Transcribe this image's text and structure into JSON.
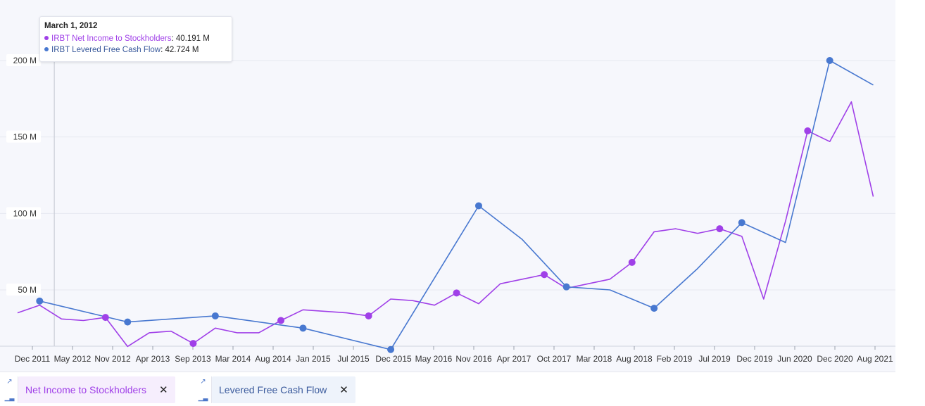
{
  "chart_data": {
    "type": "line",
    "y_ticks": [
      {
        "label": "50 M",
        "value": 50
      },
      {
        "label": "100 M",
        "value": 100
      },
      {
        "label": "150 M",
        "value": 150
      },
      {
        "label": "200 M",
        "value": 200
      }
    ],
    "x_ticks": [
      "Dec 2011",
      "May 2012",
      "Nov 2012",
      "Apr 2013",
      "Sep 2013",
      "Mar 2014",
      "Aug 2014",
      "Jan 2015",
      "Jul 2015",
      "Dec 2015",
      "May 2016",
      "Nov 2016",
      "Apr 2017",
      "Oct 2017",
      "Mar 2018",
      "Aug 2018",
      "Feb 2019",
      "Jul 2019",
      "Dec 2019",
      "Jun 2020",
      "Dec 2020",
      "Aug 2021"
    ],
    "x_range": [
      "Sep 2011",
      "Sep 2021"
    ],
    "ylim": [
      10,
      215
    ],
    "grid": true,
    "series": [
      {
        "name": "IRBT Net Income to Stockholders",
        "color": "#a040e8",
        "points": [
          {
            "x": "2011-09-30",
            "y": 35
          },
          {
            "x": "2011-12-31",
            "y": 40
          },
          {
            "x": "2012-03-31",
            "y": 31
          },
          {
            "x": "2012-06-30",
            "y": 30
          },
          {
            "x": "2012-09-30",
            "y": 32,
            "marker": true
          },
          {
            "x": "2012-12-31",
            "y": 13
          },
          {
            "x": "2013-03-31",
            "y": 22
          },
          {
            "x": "2013-06-30",
            "y": 23
          },
          {
            "x": "2013-09-30",
            "y": 15,
            "marker": true
          },
          {
            "x": "2013-12-31",
            "y": 25
          },
          {
            "x": "2014-03-31",
            "y": 22
          },
          {
            "x": "2014-06-30",
            "y": 22
          },
          {
            "x": "2014-09-30",
            "y": 30,
            "marker": true
          },
          {
            "x": "2014-12-31",
            "y": 37
          },
          {
            "x": "2015-03-31",
            "y": 36
          },
          {
            "x": "2015-06-30",
            "y": 35
          },
          {
            "x": "2015-09-30",
            "y": 33,
            "marker": true
          },
          {
            "x": "2015-12-31",
            "y": 44
          },
          {
            "x": "2016-03-31",
            "y": 43
          },
          {
            "x": "2016-06-30",
            "y": 40
          },
          {
            "x": "2016-09-30",
            "y": 48,
            "marker": true
          },
          {
            "x": "2016-12-31",
            "y": 41
          },
          {
            "x": "2017-03-31",
            "y": 54
          },
          {
            "x": "2017-06-30",
            "y": 57
          },
          {
            "x": "2017-09-30",
            "y": 60,
            "marker": true
          },
          {
            "x": "2017-12-31",
            "y": 51
          },
          {
            "x": "2018-03-31",
            "y": 54
          },
          {
            "x": "2018-06-30",
            "y": 57
          },
          {
            "x": "2018-09-30",
            "y": 68,
            "marker": true
          },
          {
            "x": "2018-12-31",
            "y": 88
          },
          {
            "x": "2019-03-31",
            "y": 90
          },
          {
            "x": "2019-06-30",
            "y": 87
          },
          {
            "x": "2019-09-30",
            "y": 90,
            "marker": true
          },
          {
            "x": "2019-12-31",
            "y": 85
          },
          {
            "x": "2020-03-31",
            "y": 44
          },
          {
            "x": "2020-06-30",
            "y": 95
          },
          {
            "x": "2020-09-30",
            "y": 154,
            "marker": true
          },
          {
            "x": "2020-12-31",
            "y": 147
          },
          {
            "x": "2021-03-31",
            "y": 173
          },
          {
            "x": "2021-06-30",
            "y": 111
          }
        ]
      },
      {
        "name": "IRBT Levered Free Cash Flow",
        "color": "#4878d0",
        "points": [
          {
            "x": "2011-12-31",
            "y": 42.724,
            "marker": true
          },
          {
            "x": "2012-12-31",
            "y": 29,
            "marker": true
          },
          {
            "x": "2013-12-31",
            "y": 33,
            "marker": true
          },
          {
            "x": "2014-12-31",
            "y": 25,
            "marker": true
          },
          {
            "x": "2015-12-31",
            "y": 11,
            "marker": true
          },
          {
            "x": "2016-12-31",
            "y": 105,
            "marker": true
          },
          {
            "x": "2017-06-30",
            "y": 83
          },
          {
            "x": "2017-12-31",
            "y": 52,
            "marker": true
          },
          {
            "x": "2018-06-30",
            "y": 50
          },
          {
            "x": "2018-12-31",
            "y": 38,
            "marker": true
          },
          {
            "x": "2019-06-30",
            "y": 64
          },
          {
            "x": "2019-12-31",
            "y": 94,
            "marker": true
          },
          {
            "x": "2020-06-30",
            "y": 81
          },
          {
            "x": "2020-12-31",
            "y": 200,
            "marker": true
          },
          {
            "x": "2021-06-30",
            "y": 184
          }
        ]
      }
    ],
    "crosshair_x": "2012-03-01"
  },
  "tooltip": {
    "date": "March 1, 2012",
    "rows": [
      {
        "series": "IRBT Net Income to Stockholders",
        "value": "40.191 M",
        "color": "#a040e8"
      },
      {
        "series": "IRBT Levered Free Cash Flow",
        "value": "42.724 M",
        "color": "#4878d0"
      }
    ]
  },
  "legend": [
    {
      "label": "Net Income to Stockholders",
      "color": "#a040e8",
      "bg": "#f6eefd",
      "close": "✕"
    },
    {
      "label": "Levered Free Cash Flow",
      "color": "#3a5a9c",
      "bg": "#eef3fb",
      "close": "✕"
    }
  ]
}
